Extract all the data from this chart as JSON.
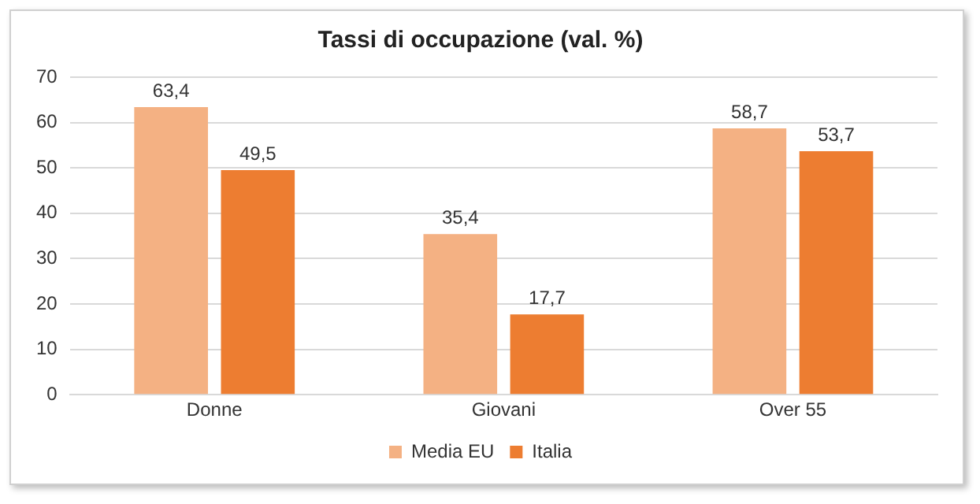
{
  "chart_data": {
    "type": "bar",
    "title": "Tassi di occupazione (val. %)",
    "categories": [
      "Donne",
      "Giovani",
      "Over 55"
    ],
    "series": [
      {
        "name": "Media EU",
        "color": "#f4b183",
        "values": [
          63.4,
          35.4,
          58.7
        ],
        "value_labels": [
          "63,4",
          "35,4",
          "58,7"
        ]
      },
      {
        "name": "Italia",
        "color": "#ed7d31",
        "values": [
          49.5,
          17.7,
          53.7
        ],
        "value_labels": [
          "49,5",
          "17,7",
          "53,7"
        ]
      }
    ],
    "ylim": [
      0,
      70
    ],
    "yticks": [
      0,
      10,
      20,
      30,
      40,
      50,
      60,
      70
    ],
    "grid": "y",
    "legend": "bottom"
  }
}
